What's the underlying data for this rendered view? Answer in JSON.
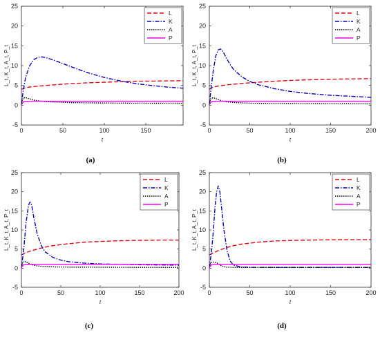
{
  "chart_data": [
    {
      "type": "line",
      "panel": "(a)",
      "xlabel": "t",
      "ylabel": "L_t, K_t, A_t, P_t",
      "xlim": [
        0,
        195
      ],
      "ylim": [
        -5,
        25
      ],
      "xticks": [
        0,
        50,
        100,
        150
      ],
      "yticks": [
        -5,
        0,
        5,
        10,
        15,
        20,
        25
      ],
      "legend": "top-right",
      "series": [
        {
          "name": "L",
          "color": "#e8000b",
          "dash": "6,3",
          "x": [
            0,
            2,
            5,
            10,
            20,
            30,
            40,
            50,
            60,
            80,
            100,
            120,
            140,
            160,
            180,
            195
          ],
          "y": [
            4.0,
            4.2,
            4.4,
            4.6,
            4.8,
            5.0,
            5.15,
            5.3,
            5.45,
            5.65,
            5.8,
            5.95,
            6.05,
            6.1,
            6.15,
            6.2
          ]
        },
        {
          "name": "K",
          "color": "#0000cc",
          "dash": "6,2,1.5,2",
          "x": [
            0,
            2,
            5,
            10,
            15,
            20,
            25,
            30,
            40,
            50,
            60,
            80,
            100,
            120,
            140,
            160,
            180,
            195
          ],
          "y": [
            0,
            3.5,
            7.0,
            10.0,
            11.5,
            12.1,
            12.2,
            12.0,
            11.3,
            10.5,
            9.7,
            8.2,
            7.0,
            6.1,
            5.4,
            4.9,
            4.5,
            4.3
          ]
        },
        {
          "name": "A",
          "color": "#000000",
          "dash": "1.5,1.5",
          "x": [
            0,
            2,
            5,
            10,
            15,
            20,
            30,
            40,
            60,
            100,
            150,
            195
          ],
          "y": [
            0.5,
            1.8,
            1.9,
            1.6,
            1.3,
            1.1,
            0.9,
            0.8,
            0.65,
            0.55,
            0.5,
            0.5
          ]
        },
        {
          "name": "P",
          "color": "#ee00ee",
          "dash": "",
          "x": [
            0,
            2,
            5,
            10,
            20,
            50,
            100,
            150,
            195
          ],
          "y": [
            0.0,
            0.8,
            0.95,
            1.0,
            1.0,
            1.0,
            1.0,
            1.0,
            1.0
          ]
        }
      ]
    },
    {
      "type": "line",
      "panel": "(b)",
      "xlabel": "t",
      "ylabel": "L_t, K_t, A_t, P_t",
      "xlim": [
        0,
        200
      ],
      "ylim": [
        -5,
        25
      ],
      "xticks": [
        0,
        50,
        100,
        150,
        200
      ],
      "yticks": [
        -5,
        0,
        5,
        10,
        15,
        20,
        25
      ],
      "legend": "top-right",
      "series": [
        {
          "name": "L",
          "color": "#e8000b",
          "dash": "6,3",
          "x": [
            0,
            2,
            5,
            10,
            20,
            40,
            60,
            80,
            100,
            120,
            140,
            160,
            180,
            200
          ],
          "y": [
            4.0,
            4.3,
            4.6,
            4.8,
            5.1,
            5.5,
            5.8,
            6.05,
            6.25,
            6.4,
            6.5,
            6.6,
            6.65,
            6.7
          ]
        },
        {
          "name": "K",
          "color": "#0000cc",
          "dash": "6,2,1.5,2",
          "x": [
            0,
            2,
            5,
            8,
            11,
            14,
            17,
            20,
            25,
            30,
            40,
            50,
            60,
            80,
            100,
            120,
            150,
            200
          ],
          "y": [
            0,
            4.0,
            9.0,
            12.5,
            14.0,
            14.2,
            13.5,
            12.3,
            10.5,
            9.0,
            7.2,
            6.0,
            5.2,
            4.2,
            3.5,
            3.0,
            2.5,
            2.0
          ]
        },
        {
          "name": "A",
          "color": "#000000",
          "dash": "1.5,1.5",
          "x": [
            0,
            2,
            5,
            10,
            15,
            20,
            30,
            50,
            80,
            120,
            200
          ],
          "y": [
            0.5,
            1.7,
            1.9,
            1.5,
            1.1,
            0.9,
            0.7,
            0.5,
            0.45,
            0.4,
            0.35
          ]
        },
        {
          "name": "P",
          "color": "#ee00ee",
          "dash": "",
          "x": [
            0,
            2,
            5,
            10,
            20,
            50,
            100,
            150,
            200
          ],
          "y": [
            0.0,
            0.8,
            0.95,
            1.0,
            1.0,
            1.0,
            1.0,
            1.0,
            1.0
          ]
        }
      ]
    },
    {
      "type": "line",
      "panel": "(c)",
      "xlabel": "t",
      "ylabel": "L_t, K_t, A_t, P_t",
      "xlim": [
        0,
        200
      ],
      "ylim": [
        -5,
        25
      ],
      "xticks": [
        0,
        50,
        100,
        150,
        200
      ],
      "yticks": [
        -5,
        0,
        5,
        10,
        15,
        20,
        25
      ],
      "legend": "top-right",
      "series": [
        {
          "name": "L",
          "color": "#e8000b",
          "dash": "6,3",
          "x": [
            0,
            5,
            10,
            20,
            30,
            40,
            60,
            80,
            100,
            120,
            140,
            160,
            180,
            200
          ],
          "y": [
            3.5,
            4.0,
            4.4,
            5.0,
            5.5,
            5.9,
            6.4,
            6.8,
            7.0,
            7.15,
            7.25,
            7.3,
            7.35,
            7.35
          ]
        },
        {
          "name": "K",
          "color": "#0000cc",
          "dash": "6,2,1.5,2",
          "x": [
            0,
            3,
            6,
            9,
            11,
            13,
            16,
            20,
            25,
            30,
            40,
            50,
            60,
            80,
            100,
            150,
            200
          ],
          "y": [
            0,
            5.0,
            12.0,
            16.5,
            17.3,
            16.5,
            13.0,
            9.0,
            6.0,
            4.3,
            2.8,
            2.1,
            1.7,
            1.3,
            1.1,
            0.9,
            0.8
          ]
        },
        {
          "name": "A",
          "color": "#000000",
          "dash": "1.5,1.5",
          "x": [
            0,
            2,
            5,
            10,
            15,
            20,
            30,
            50,
            100,
            150,
            200
          ],
          "y": [
            0.5,
            1.6,
            1.7,
            1.2,
            0.8,
            0.6,
            0.4,
            0.3,
            0.25,
            0.2,
            0.2
          ]
        },
        {
          "name": "P",
          "color": "#ee00ee",
          "dash": "",
          "x": [
            0,
            2,
            5,
            10,
            20,
            50,
            100,
            150,
            200
          ],
          "y": [
            0.0,
            0.8,
            0.95,
            1.0,
            1.0,
            1.0,
            1.0,
            1.0,
            1.0
          ]
        }
      ]
    },
    {
      "type": "line",
      "panel": "(d)",
      "xlabel": "t",
      "ylabel": "L_t, K_t, A_t, P_t",
      "xlim": [
        0,
        200
      ],
      "ylim": [
        -5,
        25
      ],
      "xticks": [
        0,
        50,
        100,
        150,
        200
      ],
      "yticks": [
        -5,
        0,
        5,
        10,
        15,
        20,
        25
      ],
      "legend": "top-right",
      "series": [
        {
          "name": "L",
          "color": "#e8000b",
          "dash": "6,3",
          "x": [
            0,
            5,
            10,
            20,
            30,
            40,
            60,
            80,
            100,
            120,
            140,
            160,
            180,
            200
          ],
          "y": [
            3.5,
            4.0,
            4.5,
            5.3,
            5.9,
            6.3,
            6.8,
            7.1,
            7.25,
            7.35,
            7.4,
            7.45,
            7.45,
            7.45
          ]
        },
        {
          "name": "K",
          "color": "#0000cc",
          "dash": "6,2,1.5,2",
          "x": [
            0,
            3,
            5,
            7,
            9,
            11,
            13,
            15,
            18,
            22,
            26,
            30,
            40,
            60,
            100,
            150,
            200
          ],
          "y": [
            0,
            5.0,
            10.0,
            16.0,
            20.0,
            21.5,
            20.0,
            16.0,
            10.0,
            4.5,
            1.8,
            0.8,
            0.3,
            0.2,
            0.2,
            0.2,
            0.2
          ]
        },
        {
          "name": "A",
          "color": "#000000",
          "dash": "1.5,1.5",
          "x": [
            0,
            2,
            5,
            10,
            15,
            20,
            30,
            50,
            100,
            150,
            200
          ],
          "y": [
            0.5,
            1.5,
            1.6,
            1.3,
            0.6,
            0.3,
            0.2,
            0.2,
            0.2,
            0.2,
            0.2
          ]
        },
        {
          "name": "P",
          "color": "#ee00ee",
          "dash": "",
          "x": [
            0,
            2,
            5,
            10,
            20,
            50,
            100,
            150,
            200
          ],
          "y": [
            0.0,
            0.8,
            0.95,
            1.0,
            1.0,
            1.0,
            1.0,
            1.0,
            1.0
          ]
        }
      ]
    }
  ]
}
